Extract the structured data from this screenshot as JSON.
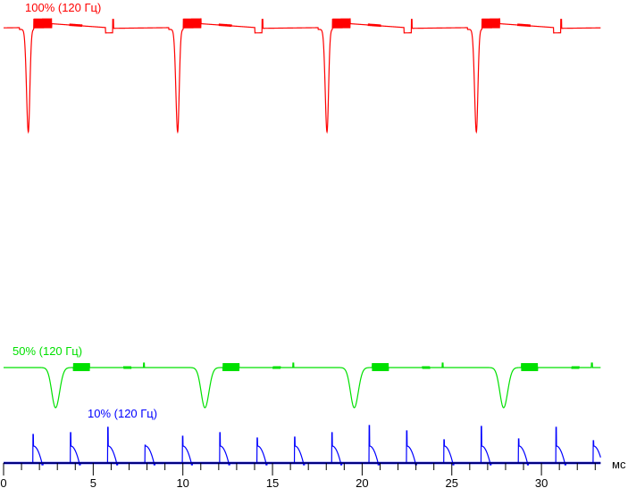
{
  "chart_data": {
    "type": "line",
    "xlabel": "мс",
    "xlim": [
      0,
      33.3
    ],
    "x_ticks": [
      0,
      5,
      10,
      15,
      20,
      25,
      30
    ],
    "x_tick_labels": [
      "0",
      "5",
      "10",
      "15",
      "20",
      "25",
      "30"
    ],
    "minor_tick_step": 1,
    "grid": false,
    "y_axis": "none (relative brightness, unlabeled)",
    "series": [
      {
        "name": "100% (120 Гц)",
        "color": "#ff0000",
        "period_ms": 8.33,
        "first_dip_ms": 1.38,
        "dip_depth": 1.15,
        "ripple_after_dip_ms": [
          0.3,
          1.3
        ]
      },
      {
        "name": "50% (120 Гц)",
        "color": "#00e000",
        "period_ms": 8.33,
        "first_dip_ms": 2.9,
        "dip_depth": 0.45,
        "ripple_after_dip_ms": [
          1.0,
          1.9
        ]
      },
      {
        "name": "10% (120 Гц)",
        "color": "#0000ff",
        "period_ms": 2.083,
        "first_pulse_ms": 1.64,
        "pulse_peaks": [
          0.32,
          0.34,
          0.4,
          0.2,
          0.3,
          0.34,
          0.28,
          0.29,
          0.34,
          0.42,
          0.36,
          0.26,
          0.41,
          0.27,
          0.4,
          0.25
        ],
        "pulse_plateau": 0.19
      }
    ]
  }
}
